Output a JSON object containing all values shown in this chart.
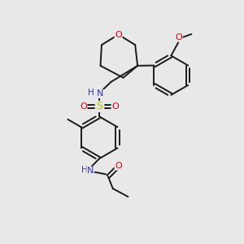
{
  "bg_color": "#e8e8e8",
  "bond_color": "#1a1a1a",
  "atom_colors": {
    "O": "#dd0000",
    "N": "#3333bb",
    "S": "#bbbb00",
    "C": "#1a1a1a"
  },
  "figsize": [
    3.0,
    3.0
  ],
  "dpi": 100
}
